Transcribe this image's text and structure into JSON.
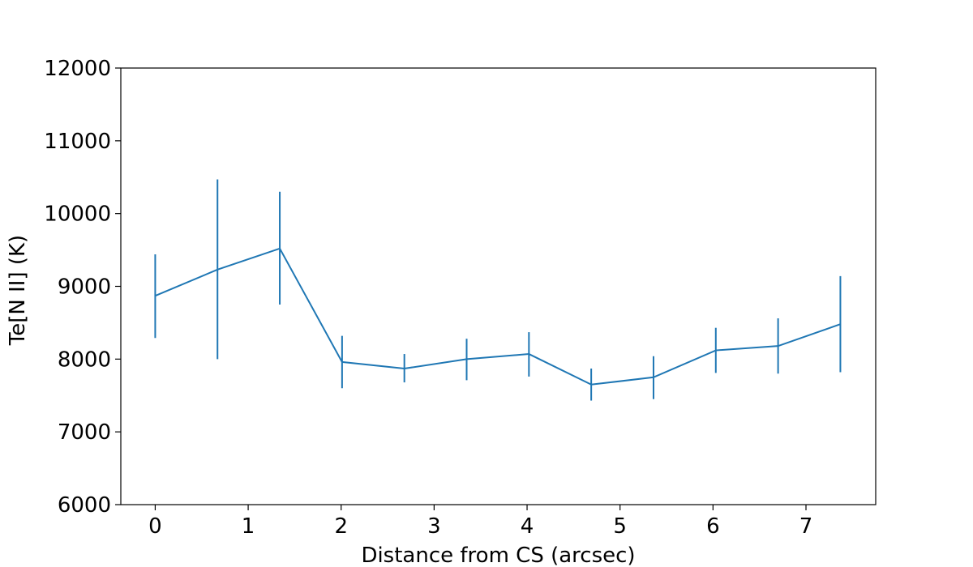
{
  "chart_data": {
    "type": "line",
    "title": "",
    "xlabel": "Distance from CS (arcsec)",
    "ylabel": "Te[N II] (K)",
    "xlim": [
      -0.37,
      7.75
    ],
    "ylim": [
      6000,
      12000
    ],
    "xticks": [
      0,
      1,
      2,
      3,
      4,
      5,
      6,
      7
    ],
    "yticks": [
      6000,
      7000,
      8000,
      9000,
      10000,
      11000,
      12000
    ],
    "grid": false,
    "series": [
      {
        "color": "#1f77b4",
        "x": [
          0,
          0.67,
          1.34,
          2.01,
          2.68,
          3.35,
          4.02,
          4.69,
          5.36,
          6.03,
          6.7,
          7.37
        ],
        "y": [
          8870,
          9230,
          9520,
          7960,
          7870,
          8000,
          8070,
          7650,
          7750,
          8120,
          8180,
          8480
        ],
        "yerr_low": [
          8290,
          8000,
          8750,
          7600,
          7680,
          7710,
          7760,
          7430,
          7450,
          7810,
          7800,
          7820
        ],
        "yerr_high": [
          9440,
          10470,
          10300,
          8320,
          8070,
          8280,
          8370,
          7870,
          8040,
          8430,
          8560,
          9140
        ]
      }
    ]
  }
}
